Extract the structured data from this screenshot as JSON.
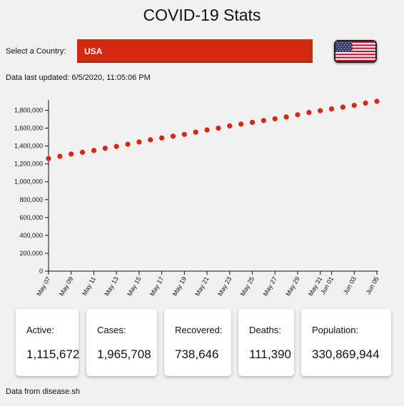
{
  "header": {
    "title": "COVID-19 Stats"
  },
  "country": {
    "label": "Select a Country:",
    "selected": "USA",
    "flag": "us-flag-icon"
  },
  "last_updated": "Data last updated: 6/5/2020, 11:05:06 PM",
  "colors": {
    "accent": "#d42810",
    "background": "#f1f1f1"
  },
  "chart_data": {
    "type": "scatter",
    "title": "",
    "xlabel": "",
    "ylabel": "",
    "x": [
      "May 07",
      "May 08",
      "May 09",
      "May 10",
      "May 11",
      "May 12",
      "May 13",
      "May 14",
      "May 15",
      "May 16",
      "May 17",
      "May 18",
      "May 19",
      "May 20",
      "May 21",
      "May 22",
      "May 23",
      "May 24",
      "May 25",
      "May 26",
      "May 27",
      "May 28",
      "May 29",
      "May 30",
      "May 31",
      "Jun 01",
      "Jun 02",
      "Jun 03",
      "Jun 04",
      "Jun 05"
    ],
    "tick_labels": [
      "May 07",
      "May 09",
      "May 11",
      "May 13",
      "May 15",
      "May 17",
      "May 19",
      "May 21",
      "May 23",
      "May 25",
      "May 27",
      "May 29",
      "May 31",
      "Jun 01",
      "Jun 03",
      "Jun 05"
    ],
    "y_ticks": [
      "0",
      "200,000",
      "400,000",
      "600,000",
      "800,000",
      "1,000,000",
      "1,200,000",
      "1,400,000",
      "1,600,000",
      "1,800,000"
    ],
    "ylim": [
      0,
      1900000
    ],
    "series": [
      {
        "values": [
          1260000,
          1285000,
          1310000,
          1330000,
          1350000,
          1375000,
          1395000,
          1420000,
          1445000,
          1470000,
          1490000,
          1510000,
          1530000,
          1555000,
          1580000,
          1600000,
          1625000,
          1645000,
          1665000,
          1685000,
          1705000,
          1725000,
          1750000,
          1775000,
          1795000,
          1815000,
          1835000,
          1855000,
          1880000,
          1900000
        ],
        "color": "#d42810"
      }
    ],
    "grid": false
  },
  "stats": [
    {
      "label": "Active:",
      "value": "1,115,672"
    },
    {
      "label": "Cases:",
      "value": "1,965,708"
    },
    {
      "label": "Recovered:",
      "value": "738,646"
    },
    {
      "label": "Deaths:",
      "value": "111,390"
    },
    {
      "label": "Population:",
      "value": "330,869,944"
    }
  ],
  "footer": "Data from disease.sh"
}
